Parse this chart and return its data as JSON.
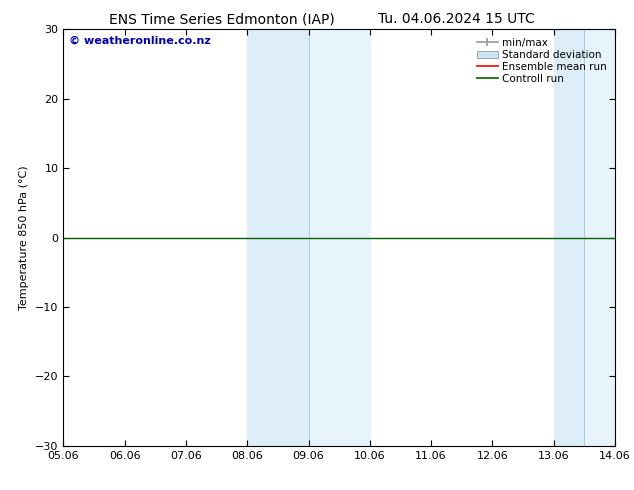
{
  "title_left": "ENS Time Series Edmonton (IAP)",
  "title_right": "Tu. 04.06.2024 15 UTC",
  "ylabel": "Temperature 850 hPa (°C)",
  "watermark": "© weatheronline.co.nz",
  "ylim": [
    -30,
    30
  ],
  "yticks": [
    -30,
    -20,
    -10,
    0,
    10,
    20,
    30
  ],
  "xtick_labels": [
    "05.06",
    "06.06",
    "07.06",
    "08.06",
    "09.06",
    "10.06",
    "11.06",
    "12.06",
    "13.06",
    "14.06"
  ],
  "x_values": [
    0,
    1,
    2,
    3,
    4,
    5,
    6,
    7,
    8,
    9
  ],
  "flat_line_y": 0,
  "shaded_bands": [
    {
      "xmin": 3.0,
      "xmax": 3.5,
      "xmid": 3.5
    },
    {
      "xmin": 3.5,
      "xmax": 5.0
    },
    {
      "xmin": 8.0,
      "xmax": 8.5,
      "xmid": 8.5
    },
    {
      "xmin": 8.5,
      "xmax": 9.0
    }
  ],
  "shade_color": "#ddeef8",
  "shade_color_light": "#e8f4fc",
  "line_color_green": "#006000",
  "line_color_red": "#ff0000",
  "line_color_gray": "#999999",
  "background_color": "#ffffff",
  "plot_bg_color": "#ffffff",
  "title_fontsize": 10,
  "axis_label_fontsize": 8,
  "tick_fontsize": 8,
  "watermark_color": "#0000bb",
  "legend_fontsize": 7.5,
  "minmax_color": "#999999",
  "std_color": "#cce4f4"
}
